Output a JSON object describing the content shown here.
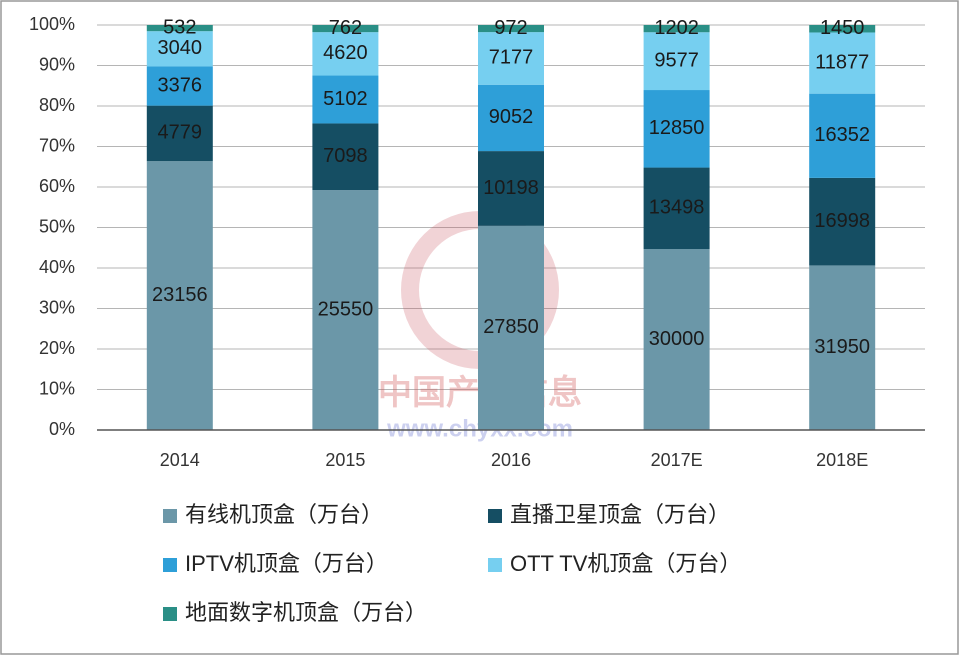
{
  "chart_data": {
    "type": "bar",
    "stacked": "percent",
    "categories": [
      "2014",
      "2015",
      "2016",
      "2017E",
      "2018E"
    ],
    "series": [
      {
        "name": "有线机顶盒（万台）",
        "color": "#6b97a8",
        "values": [
          23156,
          25550,
          27850,
          30000,
          31950
        ]
      },
      {
        "name": "直播卫星顶盒（万台）",
        "color": "#154e63",
        "values": [
          4779,
          7098,
          10198,
          13498,
          16998
        ]
      },
      {
        "name": "IPTV机顶盒（万台）",
        "color": "#2e9fd8",
        "values": [
          3376,
          5102,
          9052,
          12850,
          16352
        ]
      },
      {
        "name": "OTT TV机顶盒（万台）",
        "color": "#76cff0",
        "values": [
          3040,
          4620,
          7177,
          9577,
          11877
        ]
      },
      {
        "name": "地面数字机顶盒（万台）",
        "color": "#2a8f86",
        "values": [
          532,
          762,
          972,
          1202,
          1450
        ]
      }
    ],
    "ylim": [
      0,
      100
    ],
    "yticks": [
      {
        "value": 0,
        "label": "0%"
      },
      {
        "value": 10,
        "label": "10%"
      },
      {
        "value": 20,
        "label": "20%"
      },
      {
        "value": 30,
        "label": "30%"
      },
      {
        "value": 40,
        "label": "40%"
      },
      {
        "value": 50,
        "label": "50%"
      },
      {
        "value": 60,
        "label": "60%"
      },
      {
        "value": 70,
        "label": "70%"
      },
      {
        "value": 80,
        "label": "80%"
      },
      {
        "value": 90,
        "label": "90%"
      },
      {
        "value": 100,
        "label": "100%"
      }
    ],
    "grid": true,
    "watermark": [
      "中国产业信息",
      "www.chyxx.com"
    ]
  }
}
